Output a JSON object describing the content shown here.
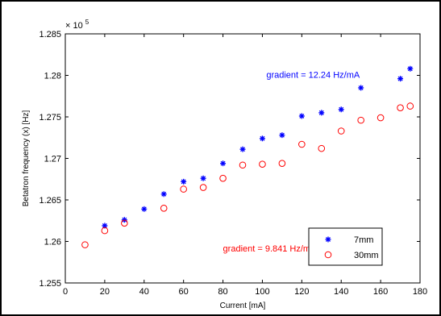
{
  "chart_data": {
    "type": "scatter",
    "xlabel": "Current [mA]",
    "ylabel": "Betatron frequency (x) [Hz]",
    "y_exponent_label": "× 10",
    "y_exponent_power": "5",
    "xlim": [
      0,
      180
    ],
    "ylim": [
      1.255,
      1.285
    ],
    "x_ticks": [
      0,
      20,
      40,
      60,
      80,
      100,
      120,
      140,
      160,
      180
    ],
    "x_tick_labels": [
      "0",
      "20",
      "40",
      "60",
      "80",
      "100",
      "120",
      "140",
      "160",
      "180"
    ],
    "y_ticks": [
      1.255,
      1.26,
      1.265,
      1.27,
      1.275,
      1.28,
      1.285
    ],
    "y_tick_labels": [
      "1.255",
      "1.26",
      "1.265",
      "1.27",
      "1.275",
      "1.28",
      "1.285"
    ],
    "grid": false,
    "legend_position": "bottom-right",
    "series": [
      {
        "name": "7mm",
        "marker": "star",
        "color": "#0000ff",
        "x": [
          20,
          30,
          40,
          50,
          60,
          70,
          80,
          90,
          100,
          110,
          120,
          130,
          140,
          150,
          170,
          175
        ],
        "y": [
          1.2619,
          1.2626,
          1.2639,
          1.2657,
          1.2672,
          1.2676,
          1.2694,
          1.2711,
          1.2724,
          1.2728,
          1.2751,
          1.2755,
          1.2759,
          1.2785,
          1.2796,
          1.2808
        ]
      },
      {
        "name": "30mm",
        "marker": "circle",
        "color": "#ff0000",
        "x": [
          10,
          20,
          30,
          50,
          60,
          70,
          80,
          90,
          100,
          110,
          120,
          130,
          140,
          150,
          160,
          170,
          175
        ],
        "y": [
          1.2596,
          1.2613,
          1.2622,
          1.264,
          1.2663,
          1.2665,
          1.2676,
          1.2692,
          1.2693,
          1.2694,
          1.2717,
          1.2712,
          1.2733,
          1.2746,
          1.2749,
          1.2761,
          1.2763
        ]
      }
    ],
    "annotations": [
      {
        "text": "gradient = 12.24 Hz/mA",
        "color": "#0000ff",
        "x": 102,
        "y": 1.2797
      },
      {
        "text": "gradient = 9.841 Hz/mA",
        "color": "#ff0000",
        "x": 80,
        "y": 1.2588
      }
    ]
  }
}
